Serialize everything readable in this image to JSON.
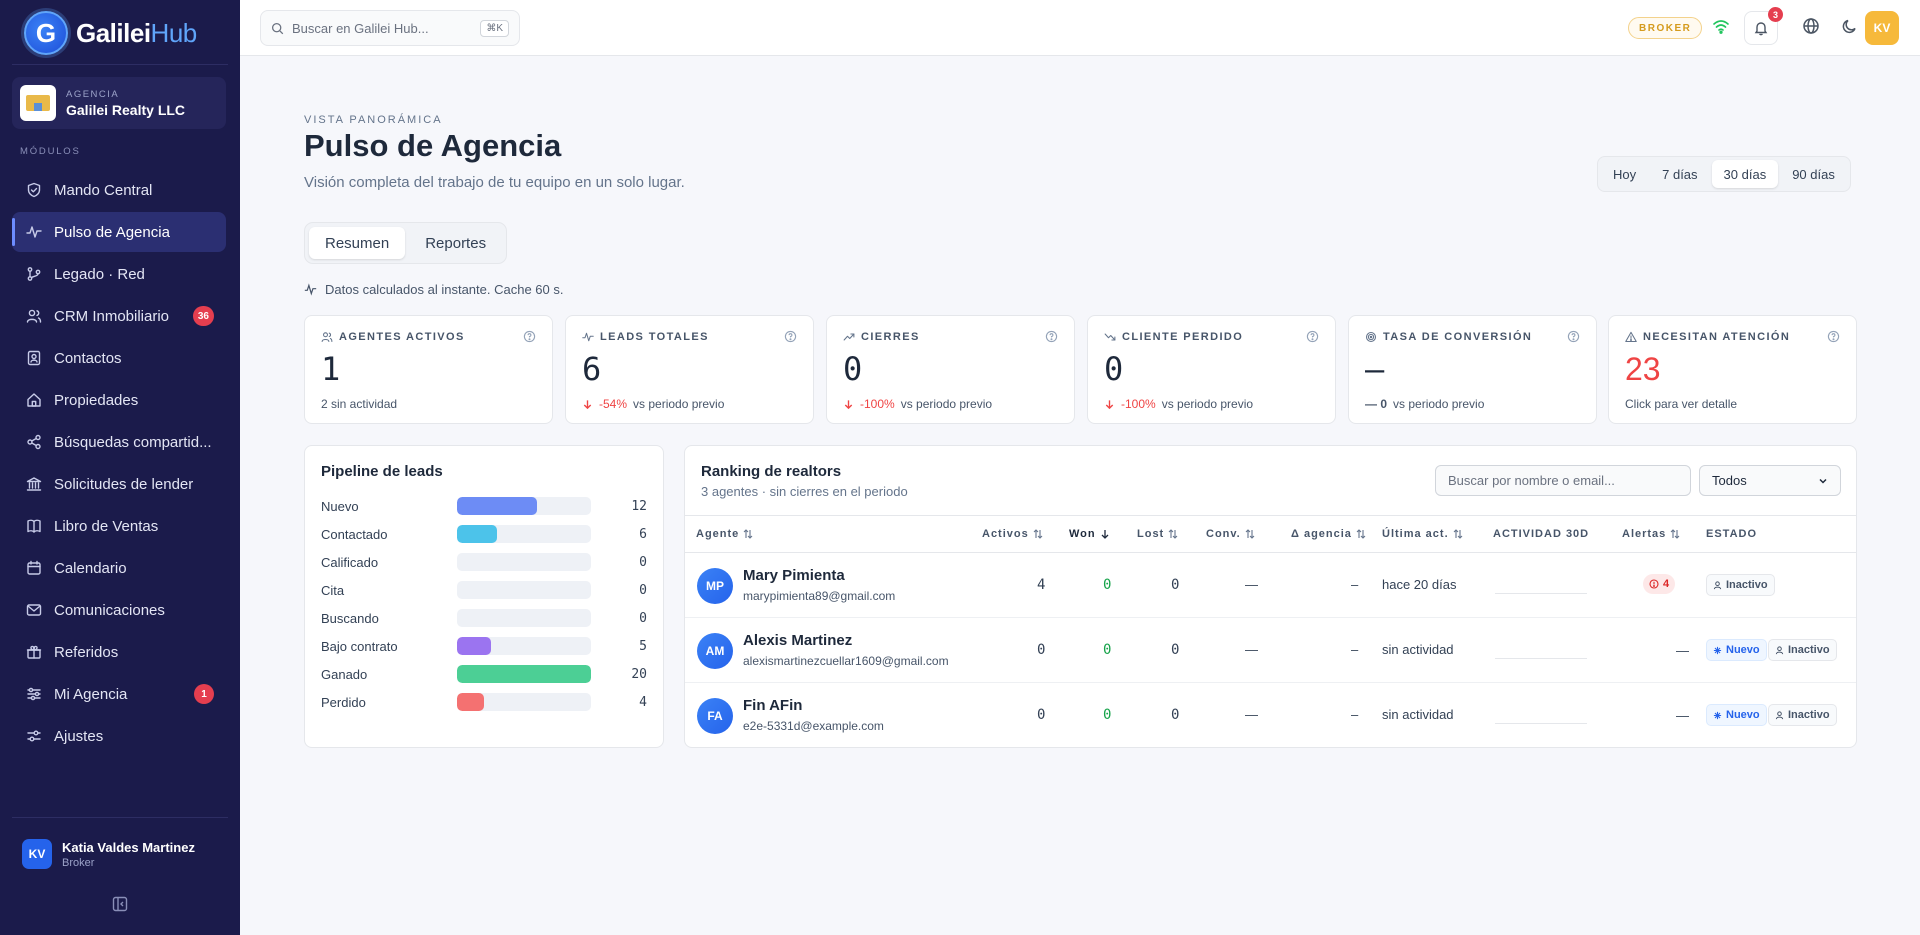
{
  "brand": {
    "name_main": "Galilei",
    "name_accent": "Hub",
    "logo_letter": "G"
  },
  "agency": {
    "label": "AGENCIA",
    "name": "Galilei Realty LLC"
  },
  "modules_label": "MÓDULOS",
  "nav": [
    {
      "label": "Mando Central",
      "icon": "shield-icon",
      "badge": ""
    },
    {
      "label": "Pulso de Agencia",
      "icon": "pulse-icon",
      "badge": "",
      "active": true
    },
    {
      "label": "Legado · Red",
      "icon": "branch-icon",
      "badge": ""
    },
    {
      "label": "CRM Inmobiliario",
      "icon": "users-icon",
      "badge": "36"
    },
    {
      "label": "Contactos",
      "icon": "contacts-icon",
      "badge": ""
    },
    {
      "label": "Propiedades",
      "icon": "home-icon",
      "badge": ""
    },
    {
      "label": "Búsquedas compartid...",
      "icon": "share-icon",
      "badge": ""
    },
    {
      "label": "Solicitudes de lender",
      "icon": "bank-icon",
      "badge": ""
    },
    {
      "label": "Libro de Ventas",
      "icon": "book-icon",
      "badge": ""
    },
    {
      "label": "Calendario",
      "icon": "calendar-icon",
      "badge": ""
    },
    {
      "label": "Comunicaciones",
      "icon": "mail-icon",
      "badge": ""
    },
    {
      "label": "Referidos",
      "icon": "gift-icon",
      "badge": ""
    },
    {
      "label": "Mi Agencia",
      "icon": "sliders-icon",
      "badge": "1"
    },
    {
      "label": "Ajustes",
      "icon": "settings-icon",
      "badge": ""
    }
  ],
  "user": {
    "initials": "KV",
    "name": "Katia Valdes Martinez",
    "role": "Broker"
  },
  "topbar": {
    "search_placeholder": "Buscar en Galilei Hub...",
    "shortcut": "⌘K",
    "role_pill": "BROKER",
    "notifications": "3",
    "avatar_initials": "KV"
  },
  "header": {
    "eyebrow": "VISTA PANORÁMICA",
    "title": "Pulso de Agencia",
    "subtitle": "Visión completa del trabajo de tu equipo en un solo lugar."
  },
  "ranges": [
    "Hoy",
    "7 días",
    "30 días",
    "90 días"
  ],
  "active_range": "30 días",
  "tabs": [
    "Resumen",
    "Reportes"
  ],
  "cache_note": "Datos calculados al instante. Cache 60 s.",
  "kpis": [
    {
      "label": "AGENTES ACTIVOS",
      "value": "1",
      "foot": "2 sin actividad",
      "delta": "",
      "icon": "users-icon"
    },
    {
      "label": "LEADS TOTALES",
      "value": "6",
      "delta": "-54%",
      "foot": "vs periodo previo",
      "icon": "pulse-icon"
    },
    {
      "label": "CIERRES",
      "value": "0",
      "delta": "-100%",
      "foot": "vs periodo previo",
      "icon": "trend-up-icon"
    },
    {
      "label": "CLIENTE PERDIDO",
      "value": "0",
      "delta": "-100%",
      "foot": "vs periodo previo",
      "icon": "trend-down-icon"
    },
    {
      "label": "TASA DE CONVERSIÓN",
      "value": "—",
      "delta": "— 0",
      "foot": "vs periodo previo",
      "icon": "target-icon"
    },
    {
      "label": "NECESITAN ATENCIÓN",
      "value": "23",
      "delta": "",
      "foot": "Click para ver detalle",
      "icon": "warning-icon"
    }
  ],
  "pipeline": {
    "title": "Pipeline de leads",
    "max": 20,
    "stages": [
      {
        "label": "Nuevo",
        "count": 12,
        "color": "#6d8cf5"
      },
      {
        "label": "Contactado",
        "count": 6,
        "color": "#4cc3ea"
      },
      {
        "label": "Calificado",
        "count": 0,
        "color": "#a78bfa"
      },
      {
        "label": "Cita",
        "count": 0,
        "color": "#a78bfa"
      },
      {
        "label": "Buscando",
        "count": 0,
        "color": "#a78bfa"
      },
      {
        "label": "Bajo contrato",
        "count": 5,
        "color": "#9b74f0"
      },
      {
        "label": "Ganado",
        "count": 20,
        "color": "#4ccf95"
      },
      {
        "label": "Perdido",
        "count": 4,
        "color": "#f47171"
      }
    ]
  },
  "ranking": {
    "title": "Ranking de realtors",
    "subtitle": "3 agentes · sin cierres en el periodo",
    "search_placeholder": "Buscar por nombre o email...",
    "filter_value": "Todos",
    "columns": {
      "agent": "Agente",
      "active": "Activos",
      "won": "Won",
      "lost": "Lost",
      "conv": "Conv.",
      "delta": "Δ agencia",
      "last": "Última act.",
      "activity": "ACTIVIDAD 30D",
      "alerts": "Alertas",
      "status": "ESTADO"
    },
    "rows": [
      {
        "initials": "MP",
        "name": "Mary Pimienta",
        "email": "marypimienta89@gmail.com",
        "active": "4",
        "won": "0",
        "lost": "0",
        "conv": "—",
        "delta": "–",
        "last": "hace 20 días",
        "alerts": "4",
        "is_new": false,
        "new_label": "",
        "status": "Inactivo"
      },
      {
        "initials": "AM",
        "name": "Alexis Martinez",
        "email": "alexismartinezcuellar1609@gmail.com",
        "active": "0",
        "won": "0",
        "lost": "0",
        "conv": "—",
        "delta": "–",
        "last": "sin actividad",
        "alerts": "—",
        "is_new": true,
        "new_label": "Nuevo",
        "status": "Inactivo"
      },
      {
        "initials": "FA",
        "name": "Fin AFin",
        "email": "e2e-5331d@example.com",
        "active": "0",
        "won": "0",
        "lost": "0",
        "conv": "—",
        "delta": "–",
        "last": "sin actividad",
        "alerts": "—",
        "is_new": true,
        "new_label": "Nuevo",
        "status": "Inactivo"
      }
    ]
  }
}
